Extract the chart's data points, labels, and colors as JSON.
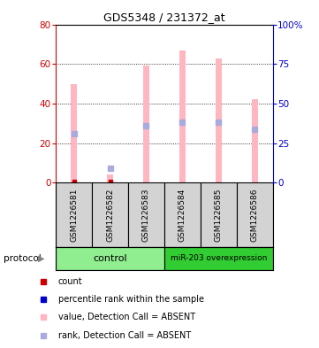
{
  "title": "GDS5348 / 231372_at",
  "samples": [
    "GSM1226581",
    "GSM1226582",
    "GSM1226583",
    "GSM1226584",
    "GSM1226585",
    "GSM1226586"
  ],
  "pink_bars": [
    50,
    4,
    59,
    67,
    63,
    42
  ],
  "blue_markers": [
    31,
    9,
    36,
    38,
    38,
    34
  ],
  "red_dots_present": [
    true,
    true,
    false,
    false,
    false,
    false
  ],
  "blue_dots_present": [
    false,
    true,
    false,
    false,
    false,
    false
  ],
  "left_ylim": [
    0,
    80
  ],
  "right_ylim": [
    0,
    100
  ],
  "left_yticks": [
    0,
    20,
    40,
    60,
    80
  ],
  "right_yticks": [
    0,
    25,
    50,
    75,
    100
  ],
  "right_yticklabels": [
    "0",
    "25",
    "50",
    "75",
    "100%"
  ],
  "bar_color_absent": "#FFB6C1",
  "rank_color_absent": "#AAAADD",
  "red_dot_color": "#CC0000",
  "blue_marker_color": "#0000CC",
  "axis_color_left": "#CC0000",
  "axis_color_right": "#0000CC",
  "control_color": "#90EE90",
  "mir_color": "#32CD32",
  "gray_box_color": "#D3D3D3",
  "bar_width": 0.18,
  "legend_items": [
    {
      "color": "#CC0000",
      "label": "count"
    },
    {
      "color": "#0000CC",
      "label": "percentile rank within the sample"
    },
    {
      "color": "#FFB6C1",
      "label": "value, Detection Call = ABSENT"
    },
    {
      "color": "#AAAADD",
      "label": "rank, Detection Call = ABSENT"
    }
  ]
}
